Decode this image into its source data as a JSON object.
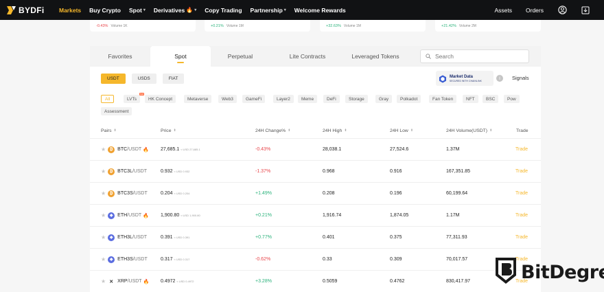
{
  "brand": {
    "name": "BYDFi"
  },
  "nav": {
    "items": [
      {
        "label": "Markets",
        "active": true,
        "dropdown": false,
        "fire": false
      },
      {
        "label": "Buy Crypto",
        "active": false,
        "dropdown": false,
        "fire": false
      },
      {
        "label": "Spot",
        "active": false,
        "dropdown": true,
        "fire": false
      },
      {
        "label": "Derivatives",
        "active": false,
        "dropdown": true,
        "fire": true
      },
      {
        "label": "Copy Trading",
        "active": false,
        "dropdown": false,
        "fire": false
      },
      {
        "label": "Partnership",
        "active": false,
        "dropdown": true,
        "fire": false
      },
      {
        "label": "Welcome Rewards",
        "active": false,
        "dropdown": false,
        "fire": false
      }
    ],
    "right": {
      "assets": "Assets",
      "orders": "Orders"
    }
  },
  "tickers": [
    {
      "change": "-0.43%",
      "volume": "Volume 1K",
      "direction": "neg"
    },
    {
      "change": "+0.21%",
      "volume": "Volume 1M",
      "direction": "pos"
    },
    {
      "change": "+32.63%",
      "volume": "Volume 1M",
      "direction": "pos"
    },
    {
      "change": "+21.42%",
      "volume": "Volume 2M",
      "direction": "pos"
    }
  ],
  "tabs": [
    "Favorites",
    "Spot",
    "Perpetual",
    "Lite Contracts",
    "Leveraged Tokens"
  ],
  "active_tab": "Spot",
  "search": {
    "placeholder": "Search"
  },
  "quote_currencies": [
    "USDT",
    "USDS",
    "FIAT"
  ],
  "market_data": {
    "title": "Market Data",
    "subtitle": "SECURED WITH CHAINLINK"
  },
  "signals": "Signals",
  "categories": [
    {
      "label": "All",
      "active": true
    },
    {
      "label": "LVTs",
      "badge": "hot"
    },
    {
      "label": "HK Concept"
    },
    {
      "label": "Metaverse"
    },
    {
      "label": "Web3"
    },
    {
      "label": "GameFi"
    },
    {
      "label": "Layer2"
    },
    {
      "label": "Meme"
    },
    {
      "label": "DeFi"
    },
    {
      "label": "Storage"
    },
    {
      "label": "Gray"
    },
    {
      "label": "Polkadot"
    },
    {
      "label": "Fan Token"
    },
    {
      "label": "NFT"
    },
    {
      "label": "BSC"
    },
    {
      "label": "Pow"
    },
    {
      "label": "Assessment"
    }
  ],
  "table": {
    "headers": {
      "pairs": "Pairs",
      "price": "Price",
      "change": "24H Change%",
      "high": "24H High",
      "low": "24H Low",
      "volume": "24H Volume(USDT)",
      "trade": "Trade"
    },
    "rows": [
      {
        "base": "BTC",
        "quote": "/USDT",
        "coin": "btc",
        "fire": true,
        "price": "27,685.1",
        "usd": "≈ USD 27,685.1",
        "change": "-0.43%",
        "direction": "neg",
        "high": "28,038.1",
        "low": "27,524.6",
        "volume": "1.37M",
        "trade": "Trade"
      },
      {
        "base": "BTC3L",
        "quote": "/USDT",
        "coin": "btc",
        "fire": false,
        "price": "0.932",
        "usd": "≈ USD 0.932",
        "change": "-1.37%",
        "direction": "neg",
        "high": "0.968",
        "low": "0.916",
        "volume": "167,351.85",
        "trade": "Trade"
      },
      {
        "base": "BTC3S",
        "quote": "/USDT",
        "coin": "btc",
        "fire": false,
        "price": "0.204",
        "usd": "≈ USD 0.204",
        "change": "+1.49%",
        "direction": "pos",
        "high": "0.208",
        "low": "0.196",
        "volume": "60,199.64",
        "trade": "Trade"
      },
      {
        "base": "ETH",
        "quote": "/USDT",
        "coin": "eth",
        "fire": true,
        "price": "1,900.80",
        "usd": "≈ USD 1,900.80",
        "change": "+0.21%",
        "direction": "pos",
        "high": "1,916.74",
        "low": "1,874.05",
        "volume": "1.17M",
        "trade": "Trade"
      },
      {
        "base": "ETH3L",
        "quote": "/USDT",
        "coin": "eth",
        "fire": false,
        "price": "0.391",
        "usd": "≈ USD 0.391",
        "change": "+0.77%",
        "direction": "pos",
        "high": "0.401",
        "low": "0.375",
        "volume": "77,311.93",
        "trade": "Trade"
      },
      {
        "base": "ETH3S",
        "quote": "/USDT",
        "coin": "eth",
        "fire": false,
        "price": "0.317",
        "usd": "≈ USD 0.317",
        "change": "-0.62%",
        "direction": "neg",
        "high": "0.33",
        "low": "0.309",
        "volume": "70,017.57",
        "trade": "Trade"
      },
      {
        "base": "XRP",
        "quote": "/USDT",
        "coin": "xrp",
        "fire": true,
        "price": "0.4972",
        "usd": "≈ USD 0.4972",
        "change": "+3.28%",
        "direction": "pos",
        "high": "0.5059",
        "low": "0.4762",
        "volume": "830,417.97",
        "trade": "Trade"
      }
    ]
  },
  "watermark": {
    "text": "BitDegree"
  },
  "colors": {
    "accent": "#f5b72b",
    "negative": "#e8464b",
    "positive": "#2ab27b",
    "nav_bg": "#111214",
    "btc": "#f0a130",
    "eth": "#5b6de0",
    "xrp": "#333333"
  },
  "icons": {
    "user": "user-circle-icon",
    "download": "download-icon",
    "search": "search-icon",
    "star": "star-icon",
    "fire": "fire-icon",
    "info": "info-icon",
    "chainlink": "chainlink-hex-icon"
  }
}
